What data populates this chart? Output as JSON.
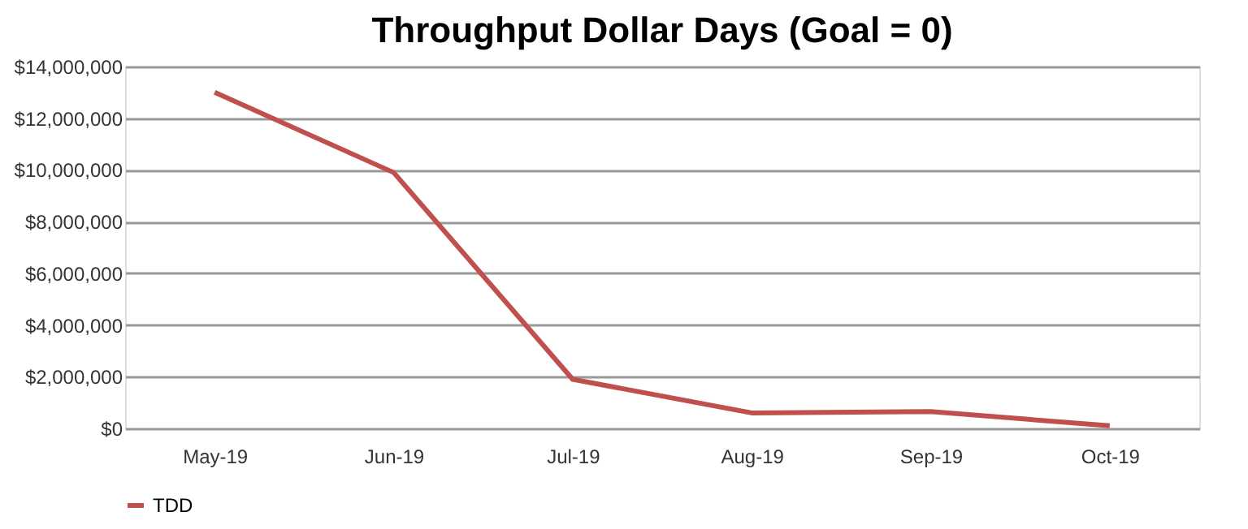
{
  "chart_data": {
    "type": "line",
    "title": "Throughput Dollar Days (Goal = 0)",
    "categories": [
      "May-19",
      "Jun-19",
      "Jul-19",
      "Aug-19",
      "Sep-19",
      "Oct-19"
    ],
    "series": [
      {
        "name": "TDD",
        "color": "#c0504d",
        "values": [
          13000000,
          9900000,
          1900000,
          600000,
          650000,
          100000
        ]
      }
    ],
    "ylim": [
      0,
      14000000
    ],
    "yticks": [
      {
        "value": 0,
        "label": "$0"
      },
      {
        "value": 2000000,
        "label": "$2,000,000"
      },
      {
        "value": 4000000,
        "label": "$4,000,000"
      },
      {
        "value": 6000000,
        "label": "$6,000,000"
      },
      {
        "value": 8000000,
        "label": "$8,000,000"
      },
      {
        "value": 10000000,
        "label": "$10,000,000"
      },
      {
        "value": 12000000,
        "label": "$12,000,000"
      },
      {
        "value": 14000000,
        "label": "$14,000,000"
      }
    ],
    "grid": "y",
    "legend": "bottom",
    "marker": "none",
    "line_style": "solid"
  }
}
